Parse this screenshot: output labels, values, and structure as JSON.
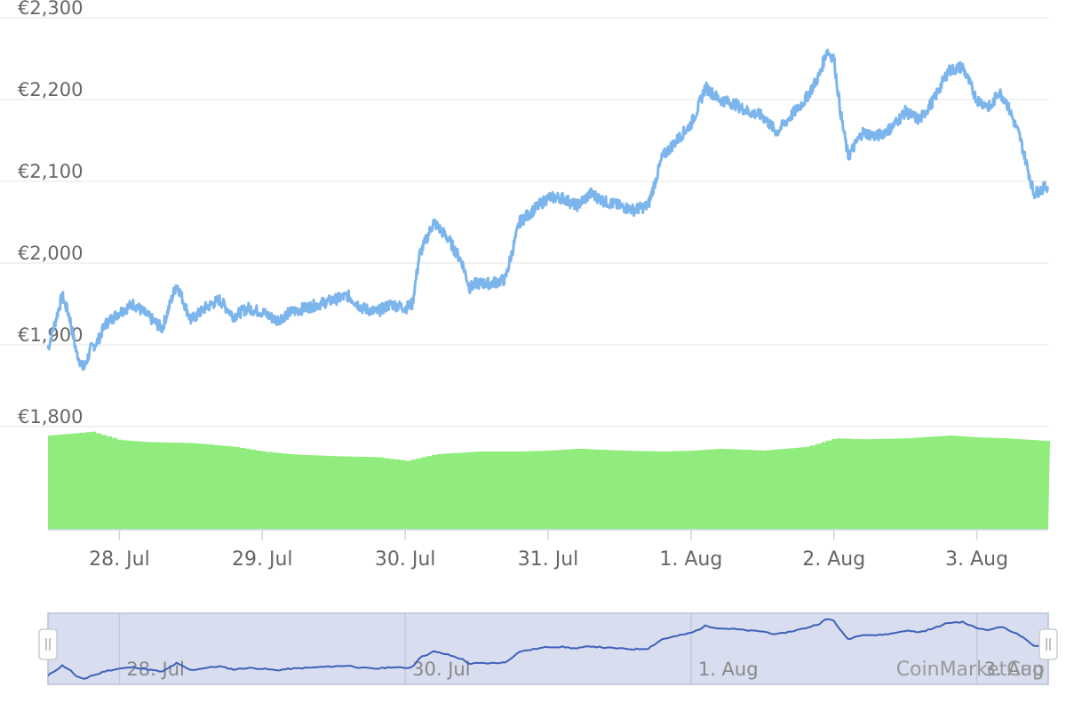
{
  "chart_data": {
    "type": "line",
    "y_axis": {
      "ticks": [
        "€1,800",
        "€1,900",
        "€2,000",
        "€2,100",
        "€2,200",
        "€2,300"
      ],
      "tick_values": [
        1800,
        1900,
        2000,
        2100,
        2200,
        2300
      ],
      "range": [
        1800,
        2300
      ],
      "grid": true
    },
    "x_axis": {
      "ticks": [
        "28. Jul",
        "29. Jul",
        "30. Jul",
        "31. Jul",
        "1. Aug",
        "2. Aug",
        "3. Aug"
      ],
      "range": [
        "27. Jul 12:00",
        "3. Aug 12:00"
      ]
    },
    "series": [
      {
        "kind": "price",
        "color": "#7cb5ec",
        "x_days": [
          27.5,
          27.6,
          27.65,
          27.7,
          27.75,
          27.8,
          27.85,
          27.9,
          28.0,
          28.1,
          28.2,
          28.3,
          28.4,
          28.5,
          28.6,
          28.7,
          28.8,
          28.9,
          29.0,
          29.1,
          29.2,
          29.3,
          29.4,
          29.5,
          29.6,
          29.7,
          29.8,
          29.9,
          30.0,
          30.05,
          30.1,
          30.2,
          30.3,
          30.4,
          30.45,
          30.5,
          30.6,
          30.7,
          30.8,
          30.9,
          31.0,
          31.1,
          31.2,
          31.3,
          31.4,
          31.5,
          31.6,
          31.7,
          31.8,
          31.9,
          32.0,
          32.05,
          32.1,
          32.2,
          32.3,
          32.4,
          32.5,
          32.6,
          32.7,
          32.8,
          32.9,
          32.95,
          33.0,
          33.05,
          33.1,
          33.2,
          33.3,
          33.4,
          33.5,
          33.6,
          33.7,
          33.8,
          33.9,
          34.0,
          34.1,
          34.15,
          34.2,
          34.3,
          34.4,
          34.5
        ],
        "values": [
          1895,
          1960,
          1935,
          1890,
          1870,
          1895,
          1905,
          1925,
          1940,
          1950,
          1935,
          1920,
          1975,
          1930,
          1945,
          1955,
          1935,
          1945,
          1940,
          1930,
          1940,
          1945,
          1950,
          1955,
          1960,
          1945,
          1940,
          1950,
          1945,
          1950,
          2010,
          2050,
          2030,
          2000,
          1970,
          1975,
          1975,
          1980,
          2050,
          2065,
          2080,
          2080,
          2070,
          2085,
          2075,
          2070,
          2065,
          2070,
          2130,
          2150,
          2170,
          2190,
          2215,
          2200,
          2195,
          2185,
          2180,
          2160,
          2180,
          2200,
          2230,
          2260,
          2250,
          2180,
          2130,
          2160,
          2155,
          2165,
          2185,
          2175,
          2200,
          2235,
          2240,
          2200,
          2190,
          2210,
          2200,
          2155,
          2085,
          2095
        ],
        "min_value": 1868,
        "max_value": 2268
      },
      {
        "kind": "volume",
        "color": "#90ed7d",
        "x_days": [
          27.5,
          27.8,
          28.0,
          28.2,
          28.5,
          28.8,
          29.0,
          29.2,
          29.5,
          29.8,
          30.0,
          30.2,
          30.5,
          30.8,
          31.0,
          31.2,
          31.5,
          31.8,
          32.0,
          32.2,
          32.5,
          32.8,
          33.0,
          33.2,
          33.5,
          33.8,
          34.0,
          34.2,
          34.5
        ],
        "values": [
          100,
          104,
          95,
          93,
          92,
          88,
          83,
          80,
          78,
          77,
          73,
          80,
          83,
          83,
          84,
          86,
          84,
          83,
          84,
          86,
          84,
          88,
          97,
          96,
          97,
          100,
          98,
          97,
          94
        ]
      }
    ],
    "navigator": {
      "ticks": [
        "28. Jul",
        "30. Jul",
        "1. Aug",
        "3. Aug"
      ],
      "selected_range": "full"
    }
  },
  "credit": "CoinMarketCap"
}
